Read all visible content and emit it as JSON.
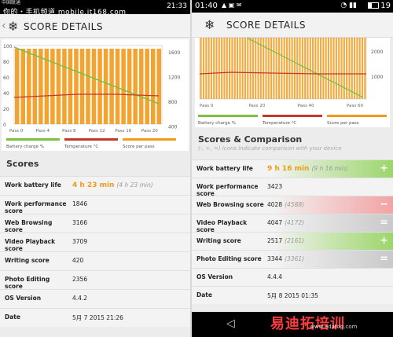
{
  "left": {
    "status": {
      "carrier": "中国联通",
      "carrier2": "中国联通",
      "watermark": "你的・手机频道 mobile.it168.com",
      "time": "21:33"
    },
    "header": {
      "title": "SCORE DETAILS"
    },
    "chart": {
      "x_labels": [
        "Pass 0",
        "Pass 4",
        "Pass 8",
        "Pass 12",
        "Pass 16",
        "Pass 20"
      ],
      "left_ticks": [
        "100",
        "80",
        "60",
        "40",
        "20",
        "0"
      ],
      "right_ticks": [
        "1600",
        "1200",
        "800",
        "400"
      ],
      "legend": [
        "Battery charge %",
        "Temperature °C",
        "Score per pass"
      ]
    },
    "scores_title": "Scores",
    "rows": [
      {
        "label": "Work battery life",
        "value": "4 h 23 min",
        "aux": "(4 h 23 min)"
      },
      {
        "label": "Work performance score",
        "value": "1846"
      },
      {
        "label": "Web Browsing score",
        "value": "3166"
      },
      {
        "label": "Video Playback score",
        "value": "3709"
      },
      {
        "label": "Writing score",
        "value": "420"
      },
      {
        "label": "Photo Editing score",
        "value": "2356"
      },
      {
        "label": "OS Version",
        "value": "4.4.2"
      },
      {
        "label": "Date",
        "value": "5月 7 2015 21:26"
      }
    ]
  },
  "right": {
    "status": {
      "time_left": "01:40",
      "time_right": "19"
    },
    "header": {
      "title": "SCORE DETAILS"
    },
    "chart": {
      "x_labels": [
        "Pass 0",
        "Pass 20",
        "Pass 40",
        "Pass 60"
      ],
      "right_ticks": [
        "2000",
        "1000"
      ],
      "legend": [
        "Battery charge %",
        "Temperature °C",
        "Score per pass"
      ]
    },
    "section_title": "Scores & Comparison",
    "section_subtitle": "(-, +, =) icons indicate comparison with your device",
    "rows": [
      {
        "label": "Work battery life",
        "value": "9 h 16 min",
        "aux": "(9 h 16 min)",
        "btn": "+"
      },
      {
        "label": "Work performance score",
        "value": "3423"
      },
      {
        "label": "Web Browsing score",
        "value": "4028",
        "aux": "(4588)",
        "btn": "−"
      },
      {
        "label": "Video Playback score",
        "value": "4047",
        "aux": "(4172)",
        "btn": "="
      },
      {
        "label": "Writing score",
        "value": "2517",
        "aux": "(2161)",
        "btn": "+"
      },
      {
        "label": "Photo Editing score",
        "value": "3344",
        "aux": "(3361)",
        "btn": "="
      },
      {
        "label": "OS Version",
        "value": "4.4.4"
      },
      {
        "label": "Date",
        "value": "5月 8 2015 01:35"
      }
    ],
    "watermark": "易迪拓培训",
    "watermark_url": "www.edatop.com"
  },
  "colors": {
    "orange": "#f29a1a",
    "green": "#7ac142",
    "red": "#c0392b",
    "plus": "#9bd66a",
    "minus": "#f2a3a3",
    "equal": "#c9c9c9"
  }
}
